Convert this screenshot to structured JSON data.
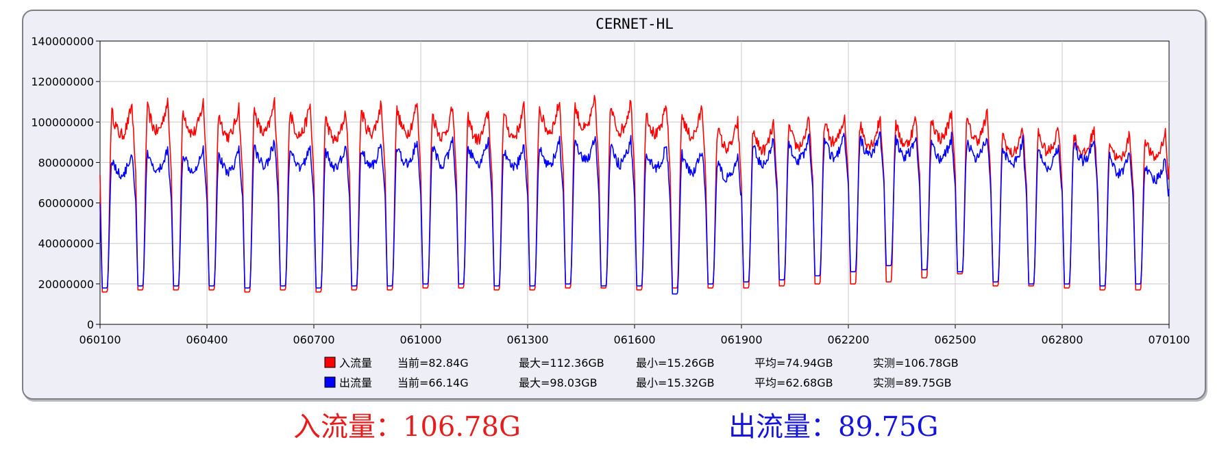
{
  "chart_data": {
    "type": "line",
    "title": "CERNET-HL",
    "xlabel": "",
    "ylabel": "",
    "ylim": [
      0,
      140000000
    ],
    "yticks": [
      "0",
      "20000000",
      "40000000",
      "60000000",
      "80000000",
      "100000000",
      "120000000",
      "140000000"
    ],
    "xlim": [
      "060100",
      "070100"
    ],
    "xticks": [
      "060100",
      "060400",
      "060700",
      "061000",
      "061300",
      "061600",
      "061900",
      "062200",
      "062500",
      "062800",
      "070100"
    ],
    "grid": true,
    "legend_position": "bottom",
    "series": [
      {
        "name": "入流量",
        "color": "#ff0000",
        "daily_peak": [
          105000000,
          107000000,
          106000000,
          104000000,
          106000000,
          105000000,
          102000000,
          106000000,
          106000000,
          104000000,
          102000000,
          104000000,
          107000000,
          108000000,
          107000000,
          105000000,
          104000000,
          97000000,
          96000000,
          98000000,
          100000000,
          99000000,
          99000000,
          102000000,
          101000000,
          94000000,
          95000000,
          94000000,
          91000000,
          92000000,
          89000000
        ],
        "daily_trough": [
          16000000,
          17000000,
          17000000,
          17000000,
          16000000,
          17000000,
          16000000,
          17000000,
          17000000,
          18000000,
          18000000,
          17000000,
          17000000,
          18000000,
          18000000,
          17000000,
          18000000,
          18000000,
          18000000,
          19000000,
          20000000,
          20000000,
          21000000,
          23000000,
          25000000,
          19000000,
          19000000,
          18000000,
          17000000,
          17000000,
          18000000
        ]
      },
      {
        "name": "出流量",
        "color": "#0000ff",
        "daily_peak": [
          82000000,
          84000000,
          85000000,
          84000000,
          88000000,
          86000000,
          86000000,
          87000000,
          88000000,
          88000000,
          88000000,
          86000000,
          88000000,
          90000000,
          88000000,
          86000000,
          84000000,
          80000000,
          88000000,
          90000000,
          91000000,
          92000000,
          91000000,
          90000000,
          91000000,
          88000000,
          86000000,
          90000000,
          83000000,
          79000000,
          76000000
        ],
        "daily_trough": [
          18000000,
          19000000,
          19000000,
          19000000,
          18000000,
          19000000,
          18000000,
          19000000,
          19000000,
          20000000,
          20000000,
          19000000,
          19000000,
          20000000,
          19000000,
          19000000,
          15000000,
          20000000,
          21000000,
          22000000,
          24000000,
          26000000,
          29000000,
          27000000,
          26000000,
          21000000,
          20000000,
          20000000,
          19000000,
          20000000,
          22000000
        ]
      }
    ],
    "legend_stats": [
      {
        "series": "入流量",
        "current": "当前=82.84G",
        "max": "最大=112.36GB",
        "min": "最小=15.26GB",
        "avg": "平均=74.94GB",
        "measured": "实测=106.78GB"
      },
      {
        "series": "出流量",
        "current": "当前=66.14G",
        "max": "最大=98.03GB",
        "min": "最小=15.32GB",
        "avg": "平均=62.68GB",
        "measured": "实测=89.75GB"
      }
    ]
  },
  "summary": {
    "in_text": "入流量：106.78G",
    "out_text": "出流量：89.75G",
    "in_color": "#e61d1d",
    "out_color": "#1414dc"
  }
}
